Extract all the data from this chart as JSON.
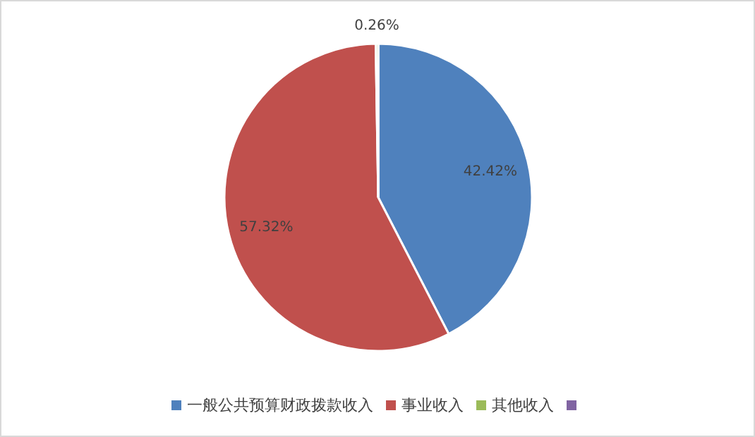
{
  "chart_data": {
    "type": "pie",
    "categories": [
      "一般公共预算财政拨款收入",
      "事业收入",
      "其他收入",
      null
    ],
    "values": [
      42.42,
      57.32,
      0.26,
      0
    ],
    "colors": [
      "#4f81bd",
      "#c0504d",
      "#9bbb59",
      "#8064a2"
    ],
    "value_labels": [
      "42.42%",
      "57.32%",
      "0.26%",
      null
    ],
    "legend": "bottom"
  }
}
